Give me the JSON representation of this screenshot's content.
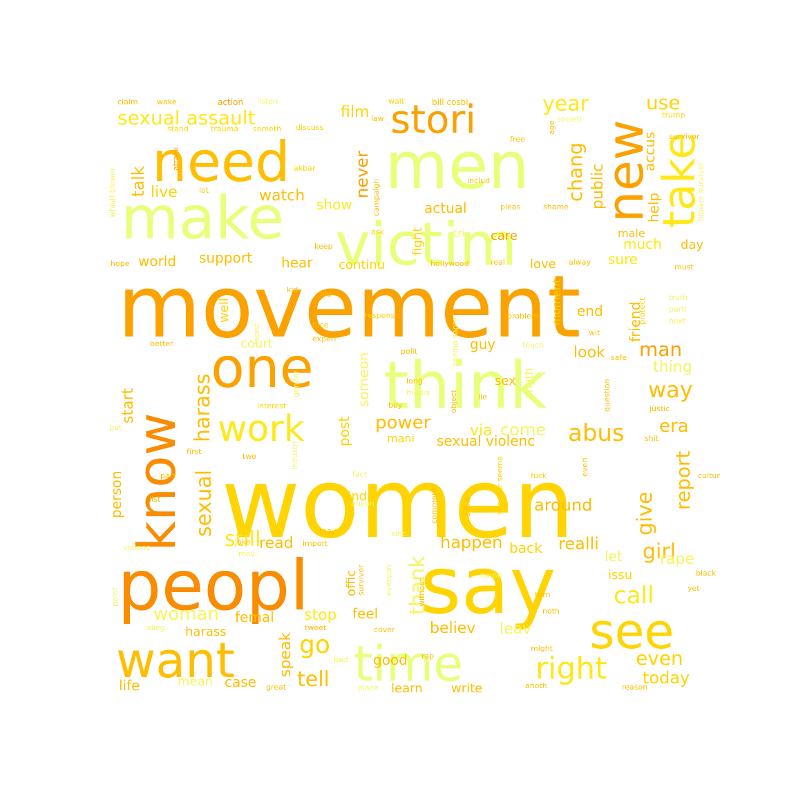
{
  "palette": {
    "dark_orange": "#f98c00",
    "orange": "#fba200",
    "amber": "#ffbe00",
    "gold": "#ffd400",
    "yellow": "#ffe81a",
    "pale_yellow": "#f5f560",
    "lime_yellow": "#e8ff7a"
  },
  "words": [
    {
      "text": "women",
      "color": "gold"
    },
    {
      "text": "movement",
      "color": "orange"
    },
    {
      "text": "say",
      "color": "gold"
    },
    {
      "text": "peopl",
      "color": "dark_orange"
    },
    {
      "text": "think",
      "color": "lime_yellow"
    },
    {
      "text": "men",
      "color": "lime_yellow"
    },
    {
      "text": "make",
      "color": "lime_yellow"
    },
    {
      "text": "victim",
      "color": "lime_yellow"
    },
    {
      "text": "need",
      "color": "amber"
    },
    {
      "text": "one",
      "color": "orange"
    },
    {
      "text": "know",
      "color": "dark_orange"
    },
    {
      "text": "time",
      "color": "lime_yellow"
    },
    {
      "text": "want",
      "color": "amber"
    },
    {
      "text": "see",
      "color": "gold"
    },
    {
      "text": "new",
      "color": "orange"
    },
    {
      "text": "take",
      "color": "yellow"
    },
    {
      "text": "stori",
      "color": "orange"
    },
    {
      "text": "work",
      "color": "yellow"
    },
    {
      "text": "right",
      "color": "yellow"
    },
    {
      "text": "sexual assault",
      "color": "yellow"
    },
    {
      "text": "year",
      "color": "yellow"
    },
    {
      "text": "use",
      "color": "gold"
    },
    {
      "text": "talk",
      "color": "amber"
    },
    {
      "text": "film",
      "color": "gold"
    },
    {
      "text": "watch",
      "color": "amber"
    },
    {
      "text": "live",
      "color": "gold"
    },
    {
      "text": "show",
      "color": "yellow"
    },
    {
      "text": "never",
      "color": "orange"
    },
    {
      "text": "chang",
      "color": "amber"
    },
    {
      "text": "public",
      "color": "amber"
    },
    {
      "text": "accus",
      "color": "amber"
    },
    {
      "text": "help",
      "color": "amber"
    },
    {
      "text": "actual",
      "color": "amber"
    },
    {
      "text": "fight",
      "color": "gold"
    },
    {
      "text": "tri",
      "color": "pale_yellow"
    },
    {
      "text": "care",
      "color": "orange"
    },
    {
      "text": "male",
      "color": "amber"
    },
    {
      "text": "much",
      "color": "yellow"
    },
    {
      "text": "day",
      "color": "amber"
    },
    {
      "text": "world",
      "color": "amber"
    },
    {
      "text": "support",
      "color": "amber"
    },
    {
      "text": "hear",
      "color": "amber"
    },
    {
      "text": "continu",
      "color": "gold"
    },
    {
      "text": "love",
      "color": "amber"
    },
    {
      "text": "sure",
      "color": "yellow"
    },
    {
      "text": "harass",
      "color": "amber"
    },
    {
      "text": "sexual",
      "color": "amber"
    },
    {
      "text": "still",
      "color": "yellow"
    },
    {
      "text": "power",
      "color": "amber"
    },
    {
      "text": "via",
      "color": "yellow"
    },
    {
      "text": "come",
      "color": "pale_yellow"
    },
    {
      "text": "abus",
      "color": "amber"
    },
    {
      "text": "era",
      "color": "amber"
    },
    {
      "text": "way",
      "color": "amber"
    },
    {
      "text": "man",
      "color": "orange"
    },
    {
      "text": "thing",
      "color": "pale_yellow"
    },
    {
      "text": "friend",
      "color": "amber"
    },
    {
      "text": "end",
      "color": "amber"
    },
    {
      "text": "look",
      "color": "amber"
    },
    {
      "text": "guy",
      "color": "amber"
    },
    {
      "text": "moment",
      "color": "gold"
    },
    {
      "text": "sex",
      "color": "amber"
    },
    {
      "text": "anyth",
      "color": "pale_yellow"
    },
    {
      "text": "someon",
      "color": "pale_yellow"
    },
    {
      "text": "post",
      "color": "gold"
    },
    {
      "text": "start",
      "color": "amber"
    },
    {
      "text": "mani",
      "color": "gold"
    },
    {
      "text": "sexual violenc",
      "color": "amber"
    },
    {
      "text": "report",
      "color": "amber"
    },
    {
      "text": "give",
      "color": "amber"
    },
    {
      "text": "around",
      "color": "amber"
    },
    {
      "text": "find",
      "color": "gold"
    },
    {
      "text": "person",
      "color": "amber"
    },
    {
      "text": "girl",
      "color": "amber"
    },
    {
      "text": "realli",
      "color": "amber"
    },
    {
      "text": "let",
      "color": "pale_yellow"
    },
    {
      "text": "rape",
      "color": "pale_yellow"
    },
    {
      "text": "issu",
      "color": "gold"
    },
    {
      "text": "call",
      "color": "yellow"
    },
    {
      "text": "happen",
      "color": "amber"
    },
    {
      "text": "back",
      "color": "gold"
    },
    {
      "text": "read",
      "color": "amber"
    },
    {
      "text": "offic",
      "color": "amber"
    },
    {
      "text": "thank",
      "color": "pale_yellow"
    },
    {
      "text": "woman",
      "color": "pale_yellow"
    },
    {
      "text": "femal",
      "color": "amber"
    },
    {
      "text": "stop",
      "color": "yellow"
    },
    {
      "text": "feel",
      "color": "amber"
    },
    {
      "text": "believ",
      "color": "amber"
    },
    {
      "text": "leav",
      "color": "pale_yellow"
    },
    {
      "text": "even",
      "color": "gold"
    },
    {
      "text": "today",
      "color": "gold"
    },
    {
      "text": "go",
      "color": "gold"
    },
    {
      "text": "tell",
      "color": "amber"
    },
    {
      "text": "speak",
      "color": "amber"
    },
    {
      "text": "harass",
      "color": "amber"
    },
    {
      "text": "good",
      "color": "amber"
    },
    {
      "text": "case",
      "color": "amber"
    },
    {
      "text": "mean",
      "color": "pale_yellow"
    },
    {
      "text": "life",
      "color": "amber"
    },
    {
      "text": "learn",
      "color": "amber"
    },
    {
      "text": "write",
      "color": "amber"
    },
    {
      "text": "court",
      "color": "pale_yellow"
    },
    {
      "text": "well",
      "color": "gold"
    },
    {
      "text": "claim",
      "color": "amber"
    },
    {
      "text": "wake",
      "color": "amber"
    },
    {
      "text": "action",
      "color": "orange"
    },
    {
      "text": "listen",
      "color": "pale_yellow"
    },
    {
      "text": "wait",
      "color": "gold"
    },
    {
      "text": "bill cosbi",
      "color": "amber"
    },
    {
      "text": "trump",
      "color": "gold"
    },
    {
      "text": "law",
      "color": "amber"
    },
    {
      "text": "age",
      "color": "amber"
    },
    {
      "text": "societi",
      "color": "pale_yellow"
    },
    {
      "text": "stand",
      "color": "gold"
    },
    {
      "text": "trauma",
      "color": "gold"
    },
    {
      "text": "someth",
      "color": "gold"
    },
    {
      "text": "discuss",
      "color": "gold"
    },
    {
      "text": "survivor",
      "color": "amber"
    },
    {
      "text": "free",
      "color": "amber"
    },
    {
      "text": "attack",
      "color": "orange"
    },
    {
      "text": "akbar",
      "color": "gold"
    },
    {
      "text": "lot",
      "color": "amber"
    },
    {
      "text": "includ",
      "color": "amber"
    },
    {
      "text": "campaign",
      "color": "amber"
    },
    {
      "text": "whistl blower",
      "color": "pale_yellow"
    },
    {
      "text": "blower survivor",
      "color": "pale_yellow"
    },
    {
      "text": "ask",
      "color": "gold"
    },
    {
      "text": "keep",
      "color": "amber"
    },
    {
      "text": "pleas",
      "color": "amber"
    },
    {
      "text": "shame",
      "color": "amber"
    },
    {
      "text": "hope",
      "color": "amber"
    },
    {
      "text": "hollywood",
      "color": "amber"
    },
    {
      "text": "real",
      "color": "amber"
    },
    {
      "text": "alway",
      "color": "amber"
    },
    {
      "text": "must",
      "color": "amber"
    },
    {
      "text": "kid",
      "color": "amber"
    },
    {
      "text": "big",
      "color": "amber"
    },
    {
      "text": "respons",
      "color": "gold"
    },
    {
      "text": "face",
      "color": "amber"
    },
    {
      "text": "experi",
      "color": "amber"
    },
    {
      "text": "rapist",
      "color": "pale_yellow"
    },
    {
      "text": "problem",
      "color": "amber"
    },
    {
      "text": "protect",
      "color": "gold"
    },
    {
      "text": "truth",
      "color": "pale_yellow"
    },
    {
      "text": "parti",
      "color": "pale_yellow"
    },
    {
      "text": "next",
      "color": "pale_yellow"
    },
    {
      "text": "seema sapra",
      "color": "pale_yellow"
    },
    {
      "text": "wit",
      "color": "amber"
    },
    {
      "text": "better",
      "color": "amber"
    },
    {
      "text": "polit",
      "color": "amber"
    },
    {
      "text": "touch",
      "color": "pale_yellow"
    },
    {
      "text": "safe",
      "color": "amber"
    },
    {
      "text": "long",
      "color": "amber"
    },
    {
      "text": "media",
      "color": "pale_yellow"
    },
    {
      "text": "lie",
      "color": "amber"
    },
    {
      "text": "object",
      "color": "amber"
    },
    {
      "text": "question",
      "color": "amber"
    },
    {
      "text": "justic",
      "color": "amber"
    },
    {
      "text": "gender",
      "color": "pale_yellow"
    },
    {
      "text": "interest",
      "color": "gold"
    },
    {
      "text": "boy",
      "color": "amber"
    },
    {
      "text": "put",
      "color": "pale_yellow"
    },
    {
      "text": "industri",
      "color": "pale_yellow"
    },
    {
      "text": "shit",
      "color": "amber"
    },
    {
      "text": "first",
      "color": "amber"
    },
    {
      "text": "two",
      "color": "amber"
    },
    {
      "text": "part",
      "color": "amber"
    },
    {
      "text": "fact",
      "color": "pale_yellow"
    },
    {
      "text": "fuck",
      "color": "gold"
    },
    {
      "text": "everi",
      "color": "amber"
    },
    {
      "text": "cultur",
      "color": "amber"
    },
    {
      "text": "list",
      "color": "amber"
    },
    {
      "text": "survivor seema",
      "color": "gold"
    },
    {
      "text": "anyon",
      "color": "pale_yellow"
    },
    {
      "text": "comment",
      "color": "amber"
    },
    {
      "text": "allow",
      "color": "amber"
    },
    {
      "text": "joke",
      "color": "amber"
    },
    {
      "text": "import",
      "color": "amber"
    },
    {
      "text": "may",
      "color": "amber"
    },
    {
      "text": "sinc",
      "color": "pale_yellow"
    },
    {
      "text": "movi",
      "color": "pale_yellow"
    },
    {
      "text": "violenc",
      "color": "pale_yellow"
    },
    {
      "text": "survivor",
      "color": "amber"
    },
    {
      "text": "everyon",
      "color": "pale_yellow"
    },
    {
      "text": "name",
      "color": "pale_yellow"
    },
    {
      "text": "black",
      "color": "amber"
    },
    {
      "text": "yet",
      "color": "amber"
    },
    {
      "text": "point",
      "color": "pale_yellow"
    },
    {
      "text": "turn",
      "color": "amber"
    },
    {
      "text": "noth",
      "color": "amber"
    },
    {
      "text": "without",
      "color": "amber"
    },
    {
      "text": "alleg",
      "color": "pale_yellow"
    },
    {
      "text": "tweet",
      "color": "amber"
    },
    {
      "text": "cover",
      "color": "amber"
    },
    {
      "text": "might",
      "color": "amber"
    },
    {
      "text": "bad",
      "color": "pale_yellow"
    },
    {
      "text": "rap",
      "color": "amber"
    },
    {
      "text": "great",
      "color": "amber"
    },
    {
      "text": "place",
      "color": "pale_yellow"
    },
    {
      "text": "anoth",
      "color": "amber"
    },
    {
      "text": "reason",
      "color": "amber"
    }
  ]
}
